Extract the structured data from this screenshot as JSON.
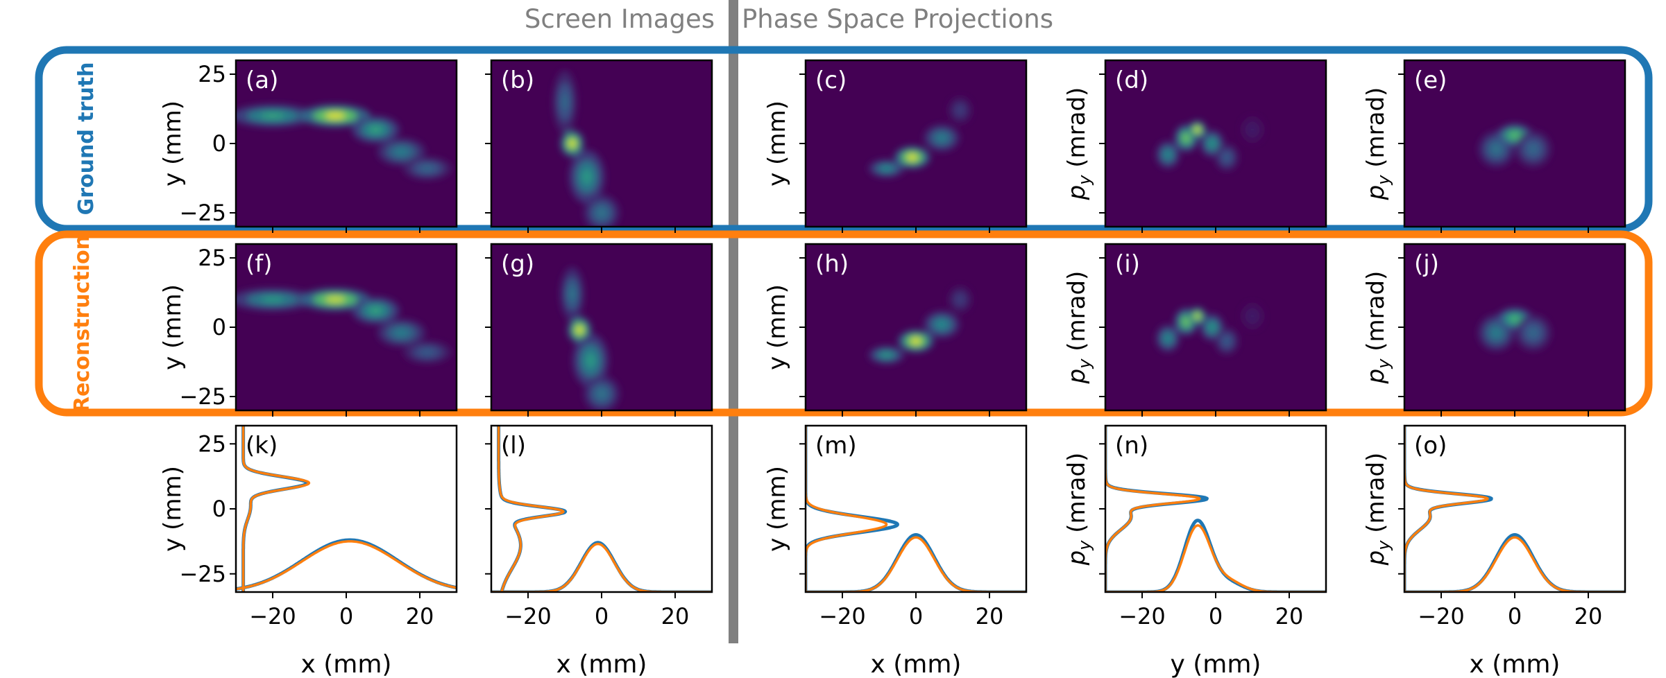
{
  "header": {
    "left_title": "Screen Images",
    "right_title": "Phase Space Projections"
  },
  "rows": {
    "ground_truth_label": "Ground truth",
    "reconstruction_label": "Reconstruction"
  },
  "colors": {
    "ground_truth": "#1f77b4",
    "reconstruction": "#ff7f0e",
    "divider": "#808080",
    "image_background": "#440154"
  },
  "chart_data": [
    {
      "type": "heatmap",
      "panel": "(a)",
      "row": "ground truth",
      "column": 1,
      "ylabel": "y (mm)",
      "yticks": [
        25,
        0,
        -25
      ],
      "xlim": [
        -30,
        30
      ],
      "ylim": [
        -30,
        30
      ],
      "blobs": [
        {
          "x": -20,
          "y": 10,
          "sx": 7,
          "sy": 2.5,
          "w": 0.6
        },
        {
          "x": -3,
          "y": 10,
          "sx": 6,
          "sy": 2.5,
          "w": 1.0
        },
        {
          "x": 8,
          "y": 5,
          "sx": 4,
          "sy": 3,
          "w": 0.6
        },
        {
          "x": 15,
          "y": -3,
          "sx": 4,
          "sy": 3,
          "w": 0.45
        },
        {
          "x": 22,
          "y": -9,
          "sx": 4,
          "sy": 2.5,
          "w": 0.35
        }
      ]
    },
    {
      "type": "heatmap",
      "panel": "(b)",
      "row": "ground truth",
      "column": 2,
      "xlim": [
        -30,
        30
      ],
      "ylim": [
        -30,
        30
      ],
      "blobs": [
        {
          "x": -8,
          "y": 0,
          "sx": 2,
          "sy": 3,
          "w": 1.0
        },
        {
          "x": -10,
          "y": 15,
          "sx": 2,
          "sy": 7,
          "w": 0.35
        },
        {
          "x": -4,
          "y": -12,
          "sx": 3,
          "sy": 6,
          "w": 0.55
        },
        {
          "x": 0,
          "y": -25,
          "sx": 3,
          "sy": 4,
          "w": 0.4
        }
      ]
    },
    {
      "type": "heatmap",
      "panel": "(c)",
      "row": "ground truth",
      "column": 3,
      "ylabel": "y (mm)",
      "xlim": [
        -30,
        30
      ],
      "ylim": [
        -30,
        30
      ],
      "blobs": [
        {
          "x": -8,
          "y": -9,
          "sx": 3,
          "sy": 2,
          "w": 0.5
        },
        {
          "x": -1,
          "y": -5,
          "sx": 3,
          "sy": 2.5,
          "w": 1.0
        },
        {
          "x": 7,
          "y": 2,
          "sx": 3,
          "sy": 3,
          "w": 0.45
        },
        {
          "x": 12,
          "y": 12,
          "sx": 2,
          "sy": 3,
          "w": 0.2
        }
      ]
    },
    {
      "type": "heatmap",
      "panel": "(d)",
      "row": "ground truth",
      "column": 4,
      "ylabel": "p_y (mrad)",
      "xlim": [
        -30,
        30
      ],
      "ylim": [
        -30,
        30
      ],
      "blobs": [
        {
          "x": -13,
          "y": -4,
          "sx": 2,
          "sy": 3,
          "w": 0.5
        },
        {
          "x": -8,
          "y": 2,
          "sx": 2,
          "sy": 3,
          "w": 0.8
        },
        {
          "x": -5,
          "y": 5,
          "sx": 1.5,
          "sy": 2,
          "w": 1.0
        },
        {
          "x": -1,
          "y": 0,
          "sx": 2,
          "sy": 3,
          "w": 0.55
        },
        {
          "x": 3,
          "y": -5,
          "sx": 2,
          "sy": 3,
          "w": 0.3
        },
        {
          "x": 10,
          "y": 5,
          "sx": 2,
          "sy": 3,
          "w": 0.1
        }
      ]
    },
    {
      "type": "heatmap",
      "panel": "(e)",
      "row": "ground truth",
      "column": 5,
      "ylabel": "p_y (mrad)",
      "xlim": [
        -30,
        30
      ],
      "ylim": [
        -30,
        30
      ],
      "blobs": [
        {
          "x": -5,
          "y": -2,
          "sx": 3,
          "sy": 4,
          "w": 0.4
        },
        {
          "x": 0,
          "y": 3,
          "sx": 3,
          "sy": 2.5,
          "w": 0.75
        },
        {
          "x": 5,
          "y": -2,
          "sx": 3,
          "sy": 4,
          "w": 0.35
        }
      ]
    },
    {
      "type": "heatmap",
      "panel": "(f)",
      "row": "reconstruction",
      "column": 1,
      "ylabel": "y (mm)",
      "yticks": [
        25,
        0,
        -25
      ],
      "xlim": [
        -30,
        30
      ],
      "ylim": [
        -30,
        30
      ],
      "blobs": [
        {
          "x": -20,
          "y": 10,
          "sx": 7,
          "sy": 2.5,
          "w": 0.55
        },
        {
          "x": -3,
          "y": 10,
          "sx": 6,
          "sy": 2.5,
          "w": 0.95
        },
        {
          "x": 8,
          "y": 6,
          "sx": 4,
          "sy": 3,
          "w": 0.6
        },
        {
          "x": 15,
          "y": -2,
          "sx": 4,
          "sy": 3,
          "w": 0.45
        },
        {
          "x": 22,
          "y": -9,
          "sx": 4,
          "sy": 2.5,
          "w": 0.3
        }
      ]
    },
    {
      "type": "heatmap",
      "panel": "(g)",
      "row": "reconstruction",
      "column": 2,
      "xlim": [
        -30,
        30
      ],
      "ylim": [
        -30,
        30
      ],
      "blobs": [
        {
          "x": -6,
          "y": -1,
          "sx": 2,
          "sy": 3,
          "w": 1.0
        },
        {
          "x": -8,
          "y": 12,
          "sx": 2,
          "sy": 6,
          "w": 0.4
        },
        {
          "x": -3,
          "y": -12,
          "sx": 3,
          "sy": 6,
          "w": 0.55
        },
        {
          "x": 0,
          "y": -24,
          "sx": 3,
          "sy": 4,
          "w": 0.4
        }
      ]
    },
    {
      "type": "heatmap",
      "panel": "(h)",
      "row": "reconstruction",
      "column": 3,
      "ylabel": "y (mm)",
      "xlim": [
        -30,
        30
      ],
      "ylim": [
        -30,
        30
      ],
      "blobs": [
        {
          "x": -8,
          "y": -10,
          "sx": 3,
          "sy": 2,
          "w": 0.55
        },
        {
          "x": 0,
          "y": -5,
          "sx": 3,
          "sy": 2.5,
          "w": 1.0
        },
        {
          "x": 7,
          "y": 1,
          "sx": 3,
          "sy": 3,
          "w": 0.5
        },
        {
          "x": 12,
          "y": 10,
          "sx": 2,
          "sy": 3,
          "w": 0.2
        }
      ]
    },
    {
      "type": "heatmap",
      "panel": "(i)",
      "row": "reconstruction",
      "column": 4,
      "ylabel": "p_y (mrad)",
      "xlim": [
        -30,
        30
      ],
      "ylim": [
        -30,
        30
      ],
      "blobs": [
        {
          "x": -13,
          "y": -4,
          "sx": 2,
          "sy": 3,
          "w": 0.5
        },
        {
          "x": -8,
          "y": 2,
          "sx": 2,
          "sy": 3,
          "w": 0.8
        },
        {
          "x": -5,
          "y": 4,
          "sx": 1.5,
          "sy": 2,
          "w": 0.95
        },
        {
          "x": -1,
          "y": 0,
          "sx": 2,
          "sy": 3,
          "w": 0.55
        },
        {
          "x": 3,
          "y": -5,
          "sx": 2,
          "sy": 3,
          "w": 0.3
        },
        {
          "x": 10,
          "y": 4,
          "sx": 2,
          "sy": 3,
          "w": 0.1
        }
      ]
    },
    {
      "type": "heatmap",
      "panel": "(j)",
      "row": "reconstruction",
      "column": 5,
      "ylabel": "p_y (mrad)",
      "xlim": [
        -30,
        30
      ],
      "ylim": [
        -30,
        30
      ],
      "blobs": [
        {
          "x": -5,
          "y": -2,
          "sx": 3,
          "sy": 4,
          "w": 0.45
        },
        {
          "x": 0,
          "y": 3,
          "sx": 3,
          "sy": 2.5,
          "w": 0.7
        },
        {
          "x": 5,
          "y": -2,
          "sx": 3,
          "sy": 4,
          "w": 0.35
        }
      ]
    },
    {
      "type": "line",
      "panel": "(k)",
      "column": 1,
      "ylabel": "y (mm)",
      "xlabel": "x (mm)",
      "xticks": [
        -20,
        0,
        20
      ],
      "yticks": [
        25,
        0,
        -25
      ],
      "xlim": [
        -30,
        30
      ],
      "ylim": [
        -32,
        32
      ],
      "series": [
        {
          "name": "ground truth",
          "side": {
            "base": -28,
            "mu": 10,
            "sigma": 2.4,
            "height": 17,
            "shoulder": {
              "mu": 1,
              "sigma": 5,
              "height": 2
            }
          },
          "bottom": {
            "base": -32,
            "mu": 1,
            "sigma": 13,
            "height": 20
          }
        },
        {
          "name": "reconstruction",
          "side": {
            "base": -28,
            "mu": 10,
            "sigma": 2.4,
            "height": 17.5,
            "shoulder": {
              "mu": 1,
              "sigma": 5,
              "height": 2
            }
          },
          "bottom": {
            "base": -32,
            "mu": 1,
            "sigma": 13,
            "height": 19.5
          }
        }
      ]
    },
    {
      "type": "line",
      "panel": "(l)",
      "column": 2,
      "xlabel": "x (mm)",
      "xticks": [
        -20,
        0,
        20
      ],
      "xlim": [
        -30,
        30
      ],
      "ylim": [
        -32,
        32
      ],
      "series": [
        {
          "name": "ground truth",
          "side": {
            "base": -28,
            "mu": -1,
            "sigma": 1.8,
            "height": 16,
            "tail": {
              "mu": -14,
              "sigma": 9,
              "height": 6
            }
          },
          "bottom": {
            "base": -32,
            "mu": -1,
            "sigma": 4.5,
            "height": 19
          }
        },
        {
          "name": "reconstruction",
          "side": {
            "base": -28,
            "mu": -1,
            "sigma": 1.9,
            "height": 15.5,
            "tail": {
              "mu": -14,
              "sigma": 9,
              "height": 6
            }
          },
          "bottom": {
            "base": -32,
            "mu": -1,
            "sigma": 4.5,
            "height": 18.5
          }
        }
      ]
    },
    {
      "type": "line",
      "panel": "(m)",
      "column": 3,
      "ylabel": "y (mm)",
      "xlabel": "x (mm)",
      "xticks": [
        -20,
        0,
        20
      ],
      "xlim": [
        -30,
        30
      ],
      "ylim": [
        -32,
        32
      ],
      "series": [
        {
          "name": "ground truth",
          "side": {
            "base": -30,
            "mu": -6,
            "sigma": 3,
            "height": 25
          },
          "bottom": {
            "base": -32,
            "mu": 0,
            "sigma": 5,
            "height": 22
          }
        },
        {
          "name": "reconstruction",
          "side": {
            "base": -30,
            "mu": -6,
            "sigma": 3.2,
            "height": 22
          },
          "bottom": {
            "base": -32,
            "mu": 0,
            "sigma": 5,
            "height": 21
          }
        }
      ]
    },
    {
      "type": "line",
      "panel": "(n)",
      "column": 4,
      "ylabel": "p_y (mrad)",
      "xlabel": "y (mm)",
      "xticks": [
        -20,
        0,
        20
      ],
      "xlim": [
        -30,
        30
      ],
      "ylim": [
        -32,
        32
      ],
      "series": [
        {
          "name": "ground truth",
          "side": {
            "base": -30,
            "mu": 4,
            "sigma": 1.8,
            "height": 25,
            "tail": {
              "mu": -3,
              "sigma": 5,
              "height": 7
            }
          },
          "bottom": {
            "base": -32,
            "mu": -5,
            "sigma": 3.5,
            "height": 27,
            "tail": {
              "mu": 3,
              "sigma": 4,
              "height": 4
            }
          }
        },
        {
          "name": "reconstruction",
          "side": {
            "base": -30,
            "mu": 4,
            "sigma": 1.8,
            "height": 23,
            "tail": {
              "mu": -3,
              "sigma": 5,
              "height": 7
            }
          },
          "bottom": {
            "base": -32,
            "mu": -5,
            "sigma": 3.5,
            "height": 25,
            "tail": {
              "mu": 3,
              "sigma": 4,
              "height": 4.5
            }
          }
        }
      ]
    },
    {
      "type": "line",
      "panel": "(o)",
      "column": 5,
      "ylabel": "p_y (mrad)",
      "xlabel": "x (mm)",
      "xticks": [
        -20,
        0,
        20
      ],
      "xlim": [
        -30,
        30
      ],
      "ylim": [
        -32,
        32
      ],
      "series": [
        {
          "name": "ground truth",
          "side": {
            "base": -30,
            "mu": 4,
            "sigma": 1.8,
            "height": 21,
            "tail": {
              "mu": -3,
              "sigma": 5,
              "height": 7
            }
          },
          "bottom": {
            "base": -32,
            "mu": 0,
            "sigma": 5,
            "height": 22
          }
        },
        {
          "name": "reconstruction",
          "side": {
            "base": -30,
            "mu": 4,
            "sigma": 1.8,
            "height": 20,
            "tail": {
              "mu": -3,
              "sigma": 5,
              "height": 7
            }
          },
          "bottom": {
            "base": -32,
            "mu": 0,
            "sigma": 5,
            "height": 21
          }
        }
      ]
    }
  ]
}
